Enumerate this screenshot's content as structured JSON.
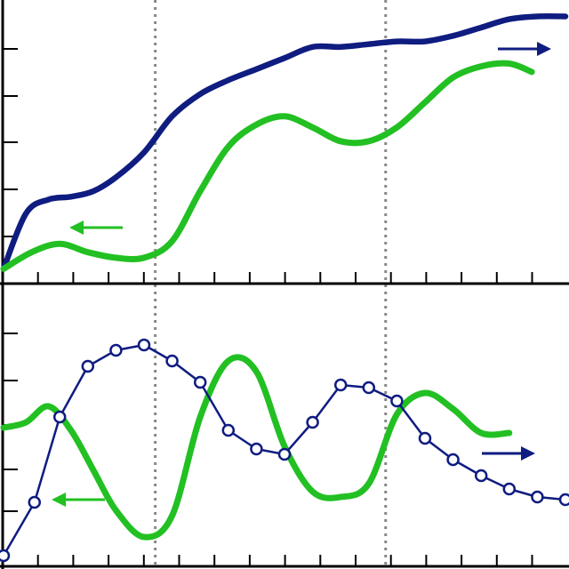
{
  "colors": {
    "navy": "#0f1c80",
    "green": "#22c022",
    "grid": "#888888",
    "axis": "#000000"
  },
  "chart_data": [
    {
      "type": "line",
      "panel": "top",
      "title": "",
      "xlabel": "",
      "ylabel": "",
      "xlim": [
        0,
        1
      ],
      "ylim": [
        0,
        1
      ],
      "grid": false,
      "vertical_reference_lines": [
        0.27,
        0.68
      ],
      "series": [
        {
          "color": "#0f1c80",
          "marker": "none",
          "axis": "right",
          "direction_arrow": "right",
          "x": [
            0.0,
            0.04,
            0.08,
            0.12,
            0.16,
            0.2,
            0.25,
            0.3,
            0.35,
            0.4,
            0.45,
            0.5,
            0.55,
            0.6,
            0.65,
            0.7,
            0.75,
            0.8,
            0.85,
            0.9,
            0.95,
            1.0
          ],
          "y": [
            0.05,
            0.25,
            0.3,
            0.31,
            0.33,
            0.38,
            0.47,
            0.6,
            0.68,
            0.73,
            0.77,
            0.81,
            0.85,
            0.85,
            0.86,
            0.87,
            0.87,
            0.89,
            0.92,
            0.95,
            0.96,
            0.96
          ]
        },
        {
          "color": "#22c022",
          "marker": "none",
          "axis": "left",
          "direction_arrow": "left",
          "x": [
            0.0,
            0.05,
            0.1,
            0.15,
            0.2,
            0.25,
            0.3,
            0.35,
            0.4,
            0.45,
            0.5,
            0.55,
            0.6,
            0.65,
            0.7,
            0.75,
            0.8,
            0.85,
            0.9,
            0.94
          ],
          "y": [
            0.05,
            0.11,
            0.14,
            0.11,
            0.09,
            0.09,
            0.15,
            0.33,
            0.49,
            0.57,
            0.6,
            0.56,
            0.51,
            0.51,
            0.56,
            0.65,
            0.74,
            0.78,
            0.79,
            0.76
          ]
        }
      ]
    },
    {
      "type": "line",
      "panel": "bottom",
      "title": "",
      "xlabel": "",
      "ylabel": "",
      "xlim": [
        0,
        1
      ],
      "ylim": [
        0,
        1
      ],
      "grid": false,
      "vertical_reference_lines": [
        0.27,
        0.68
      ],
      "series": [
        {
          "color": "#22c022",
          "marker": "none",
          "axis": "left",
          "direction_arrow": "left",
          "x": [
            0.0,
            0.04,
            0.08,
            0.12,
            0.16,
            0.2,
            0.25,
            0.3,
            0.35,
            0.4,
            0.45,
            0.5,
            0.55,
            0.6,
            0.65,
            0.7,
            0.75,
            0.8,
            0.85,
            0.9
          ],
          "y": [
            0.51,
            0.53,
            0.59,
            0.5,
            0.35,
            0.2,
            0.1,
            0.18,
            0.55,
            0.76,
            0.72,
            0.44,
            0.27,
            0.25,
            0.3,
            0.56,
            0.64,
            0.58,
            0.49,
            0.49
          ]
        },
        {
          "color": "#0f1c80",
          "marker": "circle",
          "axis": "right",
          "direction_arrow": "right",
          "x": [
            0.0,
            0.055,
            0.1,
            0.15,
            0.2,
            0.25,
            0.3,
            0.35,
            0.4,
            0.45,
            0.5,
            0.55,
            0.6,
            0.65,
            0.7,
            0.75,
            0.8,
            0.85,
            0.9,
            0.95,
            1.0
          ],
          "y": [
            0.03,
            0.23,
            0.55,
            0.74,
            0.8,
            0.82,
            0.76,
            0.68,
            0.5,
            0.43,
            0.41,
            0.53,
            0.67,
            0.66,
            0.61,
            0.47,
            0.39,
            0.33,
            0.28,
            0.25,
            0.24
          ]
        }
      ]
    }
  ]
}
